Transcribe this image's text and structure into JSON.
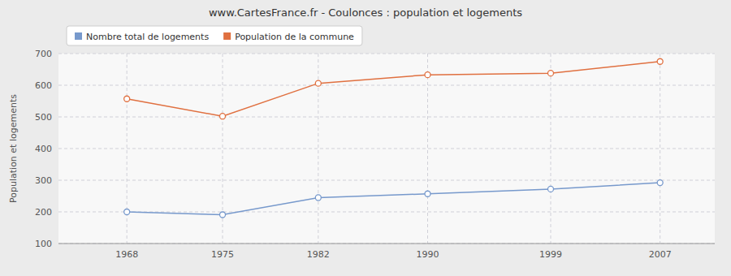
{
  "chart_data": {
    "type": "line",
    "title": "www.CartesFrance.fr - Coulonces : population et logements",
    "y_label": "Population et logements",
    "x": [
      1968,
      1975,
      1982,
      1990,
      1999,
      2007
    ],
    "xlim": [
      1963,
      2011
    ],
    "xticks": [
      1968,
      1975,
      1982,
      1990,
      1999,
      2007
    ],
    "ylim": [
      100,
      700
    ],
    "yticks": [
      100,
      200,
      300,
      400,
      500,
      600,
      700
    ],
    "grid": true,
    "legend": "upper left",
    "marker": "circle",
    "series": [
      {
        "name": "Nombre total de logements",
        "color": "#7799cc",
        "values": [
          200,
          191,
          245,
          257,
          272,
          292
        ]
      },
      {
        "name": "Population de la commune",
        "color": "#e07040",
        "values": [
          557,
          502,
          606,
          633,
          638,
          675
        ]
      }
    ]
  }
}
